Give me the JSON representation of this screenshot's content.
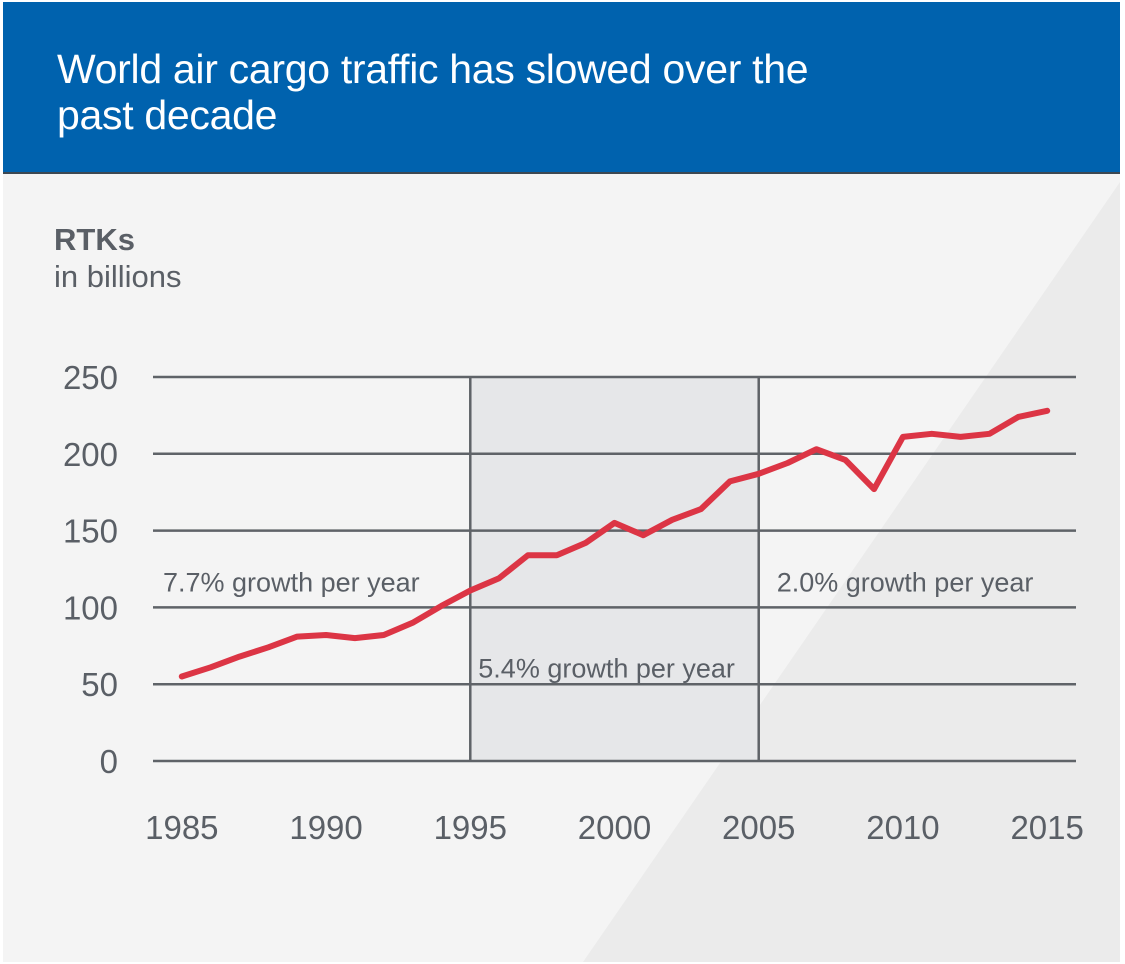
{
  "header": {
    "title": "World air cargo traffic has slowed over the past decade"
  },
  "colors": {
    "header_bg": "#0062ae",
    "line": "#dc3545",
    "grid": "#5f6368",
    "text": "#5a5f66",
    "panel_bg": "#f4f4f4",
    "shade_bg": "#e6e7e9"
  },
  "chart_data": {
    "type": "line",
    "title": "World air cargo traffic has slowed over the past decade",
    "ylabel": "RTKs",
    "ylabel_sub": "in billions",
    "xlabel": "",
    "xlim": [
      1984,
      2016
    ],
    "ylim": [
      0,
      250
    ],
    "x_ticks": [
      1985,
      1990,
      1995,
      2000,
      2005,
      2010,
      2015
    ],
    "y_ticks": [
      0,
      50,
      100,
      150,
      200,
      250
    ],
    "grid": true,
    "series": [
      {
        "x": [
          1985,
          1986,
          1987,
          1988,
          1989,
          1990,
          1991,
          1992,
          1993,
          1994,
          1995,
          1996,
          1997,
          1998,
          1999,
          2000,
          2001,
          2002,
          2003,
          2004,
          2005,
          2006,
          2007,
          2008,
          2009,
          2010,
          2011,
          2012,
          2013,
          2014,
          2015
        ],
        "values": [
          55,
          61,
          68,
          74,
          81,
          82,
          80,
          82,
          90,
          101,
          111,
          119,
          134,
          134,
          142,
          155,
          147,
          157,
          164,
          182,
          187,
          194,
          203,
          196,
          177,
          211,
          213,
          211,
          213,
          224,
          228
        ]
      }
    ],
    "periods": [
      {
        "start": 1984,
        "end": 1995,
        "label": "7.7% growth per year",
        "shaded": false
      },
      {
        "start": 1995,
        "end": 2005,
        "label": "5.4% growth per year",
        "shaded": true
      },
      {
        "start": 2005,
        "end": 2016,
        "label": "2.0% growth per year",
        "shaded": false
      }
    ]
  }
}
